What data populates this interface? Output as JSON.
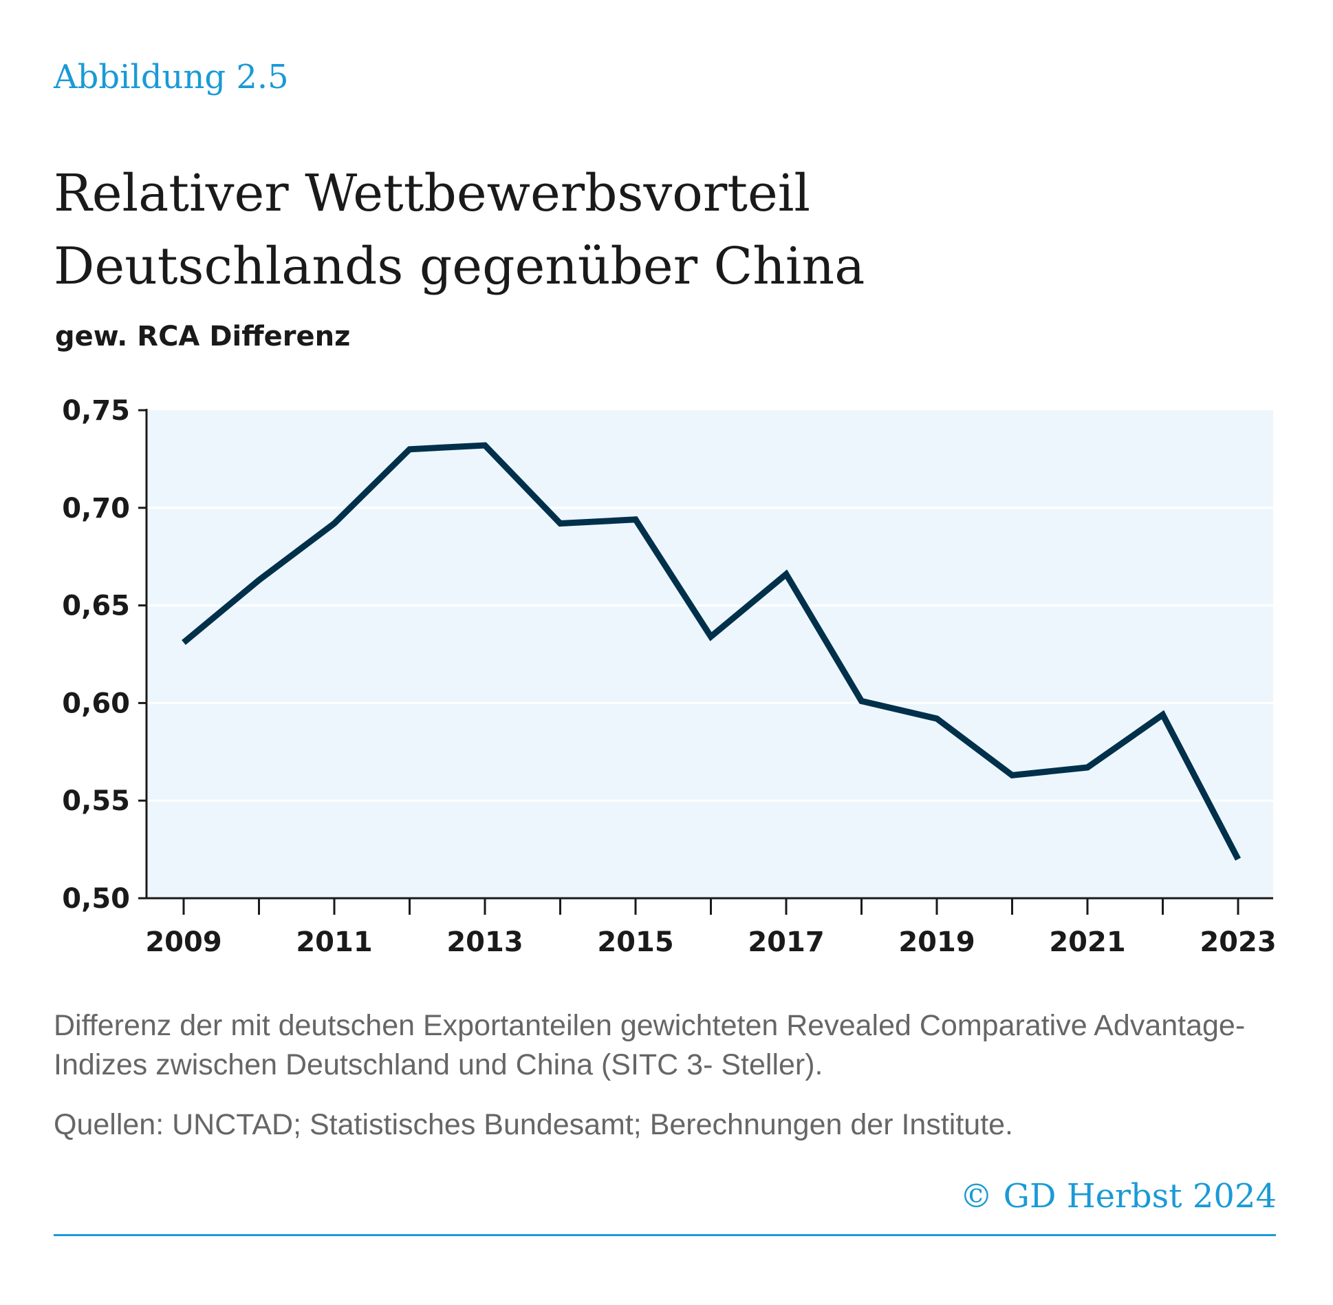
{
  "figure_label": "Abbildung 2.5",
  "title_line1": "Relativer Wettbewerbsvorteil",
  "title_line2": "Deutschlands gegenüber China",
  "footnote": "Differenz der mit deutschen Exportanteilen gewichteten Revealed Comparative Advantage-Indizes zwischen Deutschland und China (SITC 3- Steller).",
  "sources": "Quellen: UNCTAD; Statistisches Bundesamt; Berechnungen der Institute.",
  "copyright": "© GD Herbst 2024",
  "colors": {
    "accent": "#1a9ad6",
    "line": "#00304a",
    "plot_bg": "#edf6fd"
  },
  "chart_data": {
    "type": "line",
    "title": "Relativer Wettbewerbsvorteil Deutschlands gegenüber China",
    "xlabel": "",
    "ylabel": "gew. RCA Differenz",
    "x": [
      2009,
      2010,
      2011,
      2012,
      2013,
      2014,
      2015,
      2016,
      2017,
      2018,
      2019,
      2020,
      2021,
      2022,
      2023
    ],
    "series": [
      {
        "name": "gew. RCA Differenz",
        "values": [
          0.631,
          0.663,
          0.692,
          0.73,
          0.732,
          0.692,
          0.694,
          0.634,
          0.666,
          0.601,
          0.592,
          0.563,
          0.567,
          0.594,
          0.52
        ]
      }
    ],
    "ylim": [
      0.5,
      0.75
    ],
    "yticks": [
      "0,50",
      "0,55",
      "0,60",
      "0,65",
      "0,70",
      "0,75"
    ],
    "ytick_values": [
      0.5,
      0.55,
      0.6,
      0.65,
      0.7,
      0.75
    ],
    "xtick_labels": [
      "2009",
      "2011",
      "2013",
      "2015",
      "2017",
      "2019",
      "2021",
      "2023"
    ],
    "grid": true,
    "legend": "none"
  }
}
